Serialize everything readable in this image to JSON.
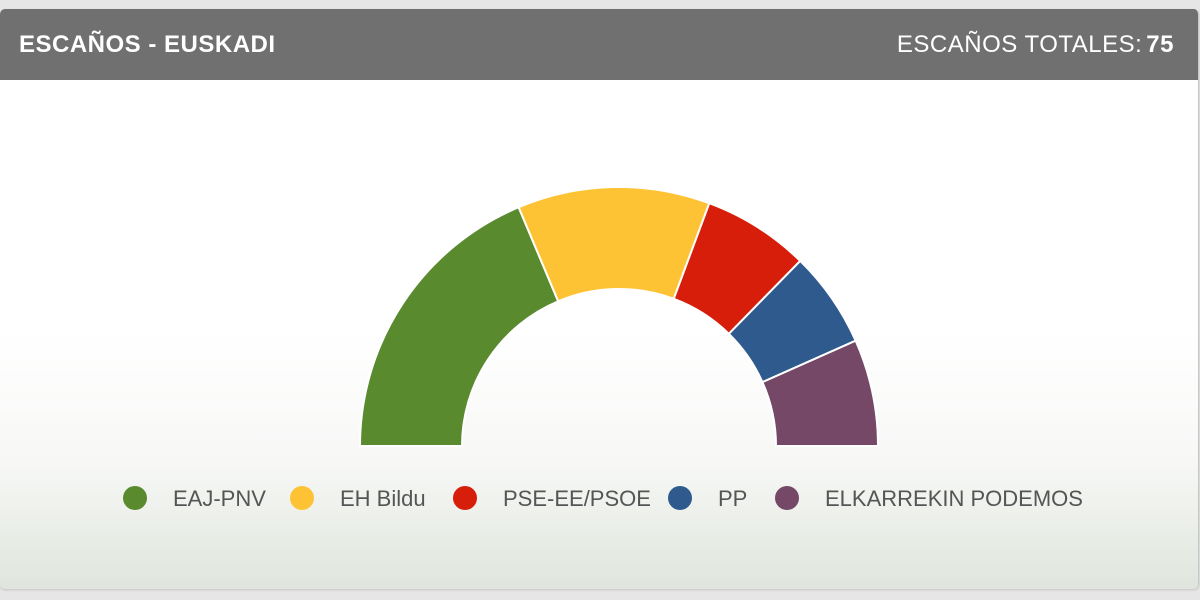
{
  "header": {
    "title": "ESCAÑOS - EUSKADI",
    "total_label": "ESCAÑOS TOTALES:",
    "total_value": "75"
  },
  "chart_data": {
    "type": "pie",
    "subtype": "parliament-semicircle",
    "title": "ESCAÑOS - EUSKADI",
    "total": 75,
    "categories": [
      "EAJ-PNV",
      "EH Bildu",
      "PSE-EE/PSOE",
      "PP",
      "ELKARREKIN PODEMOS"
    ],
    "values": [
      28,
      18,
      10,
      9,
      10
    ],
    "colors": [
      "#5a8a2e",
      "#fec334",
      "#d61e0a",
      "#2f5a8e",
      "#744866"
    ],
    "legend": "bottom"
  }
}
